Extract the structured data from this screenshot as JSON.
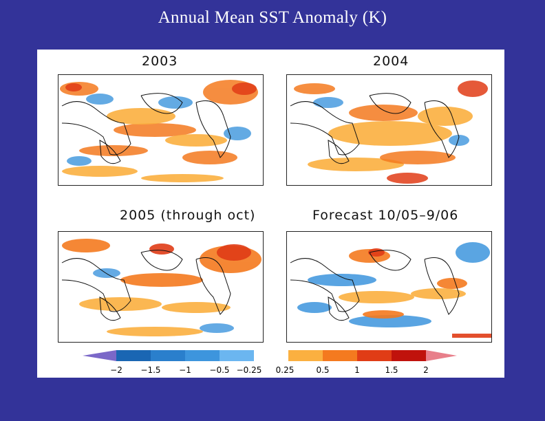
{
  "title": "Annual Mean SST Anomaly (K)",
  "panels": [
    {
      "title": "2003"
    },
    {
      "title": "2004"
    },
    {
      "title": "2005 (through oct)"
    },
    {
      "title": "Forecast 10/05–9/06"
    }
  ],
  "colorbar": {
    "tick_labels": [
      "−2",
      "−1.5",
      "−1",
      "−0.5",
      "−0.25",
      "0.25",
      "0.5",
      "1",
      "1.5",
      "2"
    ],
    "colors": {
      "below_min": "#7b68c8",
      "neg_2_15": "#1a66b3",
      "neg_15_1": "#2a7fcc",
      "neg_1_05": "#3d95dd",
      "neg_05_025": "#6bb6f0",
      "neutral": "#ffffff",
      "pos_025_05": "#fbb040",
      "pos_05_1": "#f47a1f",
      "pos_1_15": "#e03c16",
      "pos_15_2": "#c0120c",
      "above_max": "#e87f8a"
    }
  }
}
